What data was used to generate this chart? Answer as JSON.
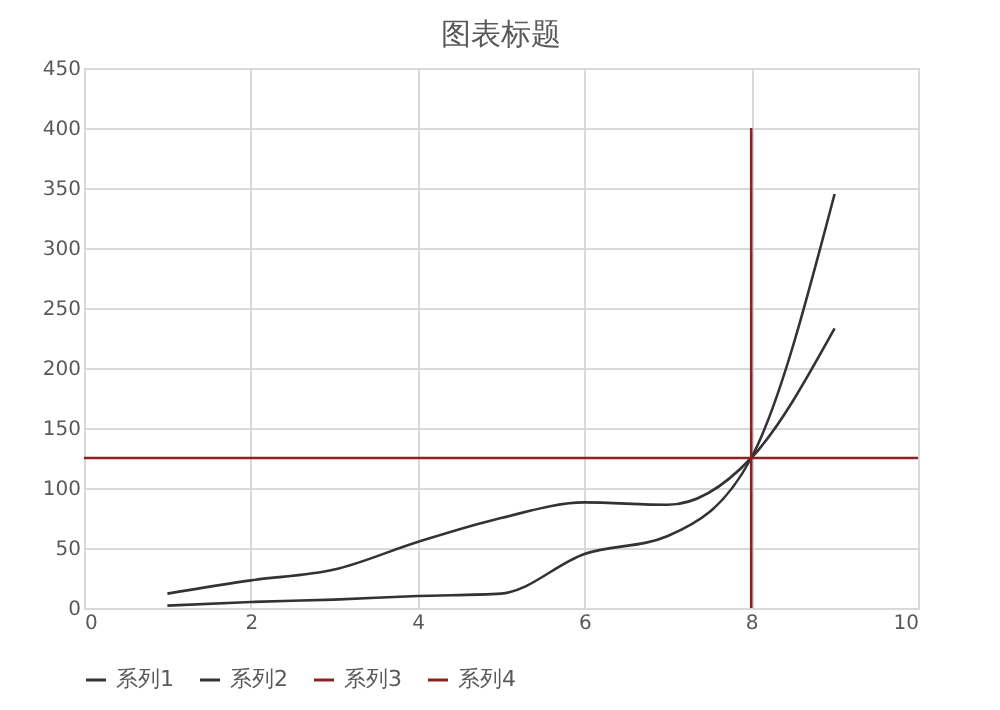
{
  "chart_data": {
    "type": "line",
    "title": "图表标题",
    "xlim": [
      0,
      10
    ],
    "xticks": [
      0,
      2,
      4,
      6,
      8,
      10
    ],
    "ylim": [
      0,
      450
    ],
    "yticks": [
      0,
      50,
      100,
      150,
      200,
      250,
      300,
      350,
      400,
      450
    ],
    "grid": true,
    "legend": "bottom",
    "marker": "none",
    "line_style": "solid",
    "series": [
      {
        "name": "系列1",
        "color": "#333333",
        "x": [
          1,
          2,
          3,
          4,
          5,
          6,
          7,
          8,
          9
        ],
        "values": [
          12,
          23,
          32,
          55,
          75,
          88,
          86,
          125,
          233
        ]
      },
      {
        "name": "系列2",
        "color": "#333333",
        "x": [
          1,
          2,
          3,
          4,
          5,
          6,
          7,
          8,
          9
        ],
        "values": [
          2,
          5,
          7,
          10,
          12,
          45,
          60,
          125,
          345
        ]
      },
      {
        "name": "系列3",
        "color": "#8b2323",
        "x": [
          8,
          8
        ],
        "values": [
          0,
          400
        ]
      },
      {
        "name": "系列4",
        "color": "#8b2323",
        "x": [
          0,
          10
        ],
        "values": [
          125,
          125
        ]
      }
    ]
  }
}
